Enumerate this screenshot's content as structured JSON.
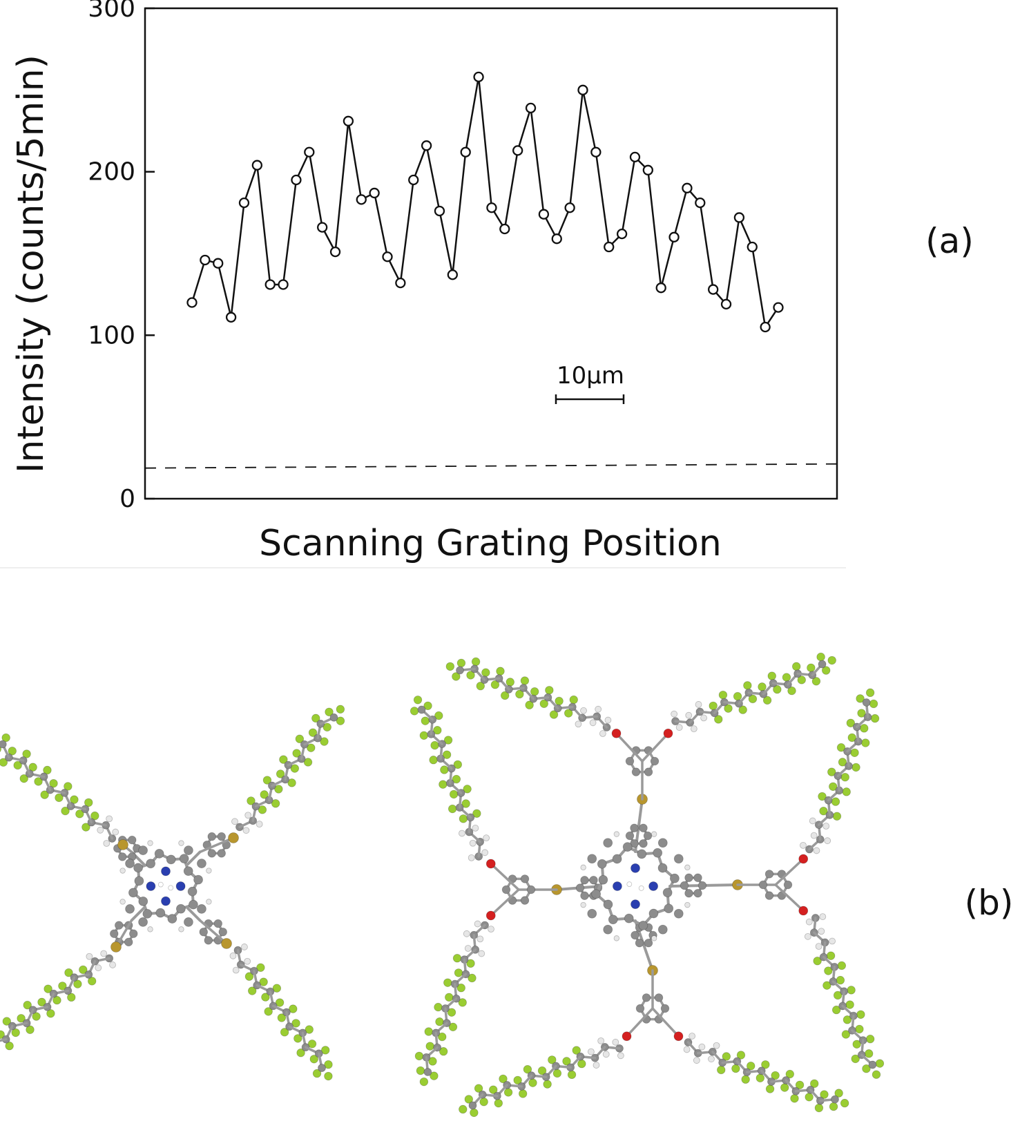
{
  "panel_a_label": "(a)",
  "panel_b_label": "(b)",
  "scale_bar_label": "10µm",
  "colors": {
    "line": "#111111",
    "carbon": "#8c8c8c",
    "fluorine": "#9acd32",
    "hydrogen": "#e6e6e6",
    "nitrogen": "#2a3fb0",
    "oxygen": "#d42020",
    "sulfur": "#b8962e"
  },
  "chart_data": {
    "type": "line",
    "markers": "open-circle",
    "xlabel": "Scanning Grating Position",
    "ylabel": "Intensity (counts/5min)",
    "ylim": [
      0,
      300
    ],
    "yticks": [
      "0",
      "100",
      "200",
      "300"
    ],
    "x_ticks_shown": false,
    "background_level": 20,
    "series": [
      {
        "values": [
          120,
          146,
          144,
          111,
          181,
          204,
          131,
          131,
          195,
          212,
          166,
          151,
          231,
          183,
          187,
          148,
          132,
          195,
          216,
          176,
          137,
          212,
          258,
          178,
          165,
          213,
          239,
          174,
          159,
          178,
          250,
          212,
          154,
          162,
          209,
          201,
          129,
          160,
          190,
          181,
          128,
          119,
          172,
          154,
          105,
          117
        ]
      }
    ]
  }
}
